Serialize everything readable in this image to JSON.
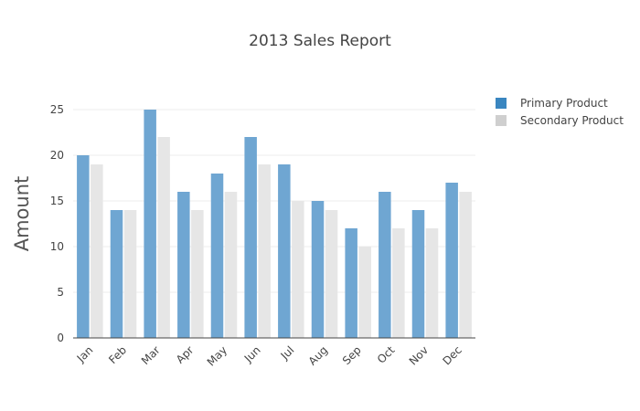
{
  "chart_data": {
    "type": "bar",
    "title": "2013 Sales Report",
    "xlabel": "",
    "ylabel": "Amount",
    "categories": [
      "Jan",
      "Feb",
      "Mar",
      "Apr",
      "May",
      "Jun",
      "Jul",
      "Aug",
      "Sep",
      "Oct",
      "Nov",
      "Dec"
    ],
    "series": [
      {
        "name": "Primary Product",
        "color": "#6fa6d2",
        "legend_color": "#3a86c0",
        "values": [
          20,
          14,
          25,
          16,
          18,
          22,
          19,
          15,
          12,
          16,
          14,
          17
        ]
      },
      {
        "name": "Secondary Product",
        "color": "#e6e6e6",
        "legend_color": "#cfcfcf",
        "values": [
          19,
          14,
          22,
          14,
          16,
          19,
          15,
          14,
          10,
          12,
          12,
          16
        ]
      }
    ],
    "ylim": [
      0,
      27
    ],
    "yticks": [
      0,
      5,
      10,
      15,
      20,
      25
    ],
    "grid": true,
    "legend_position": "top-right"
  }
}
